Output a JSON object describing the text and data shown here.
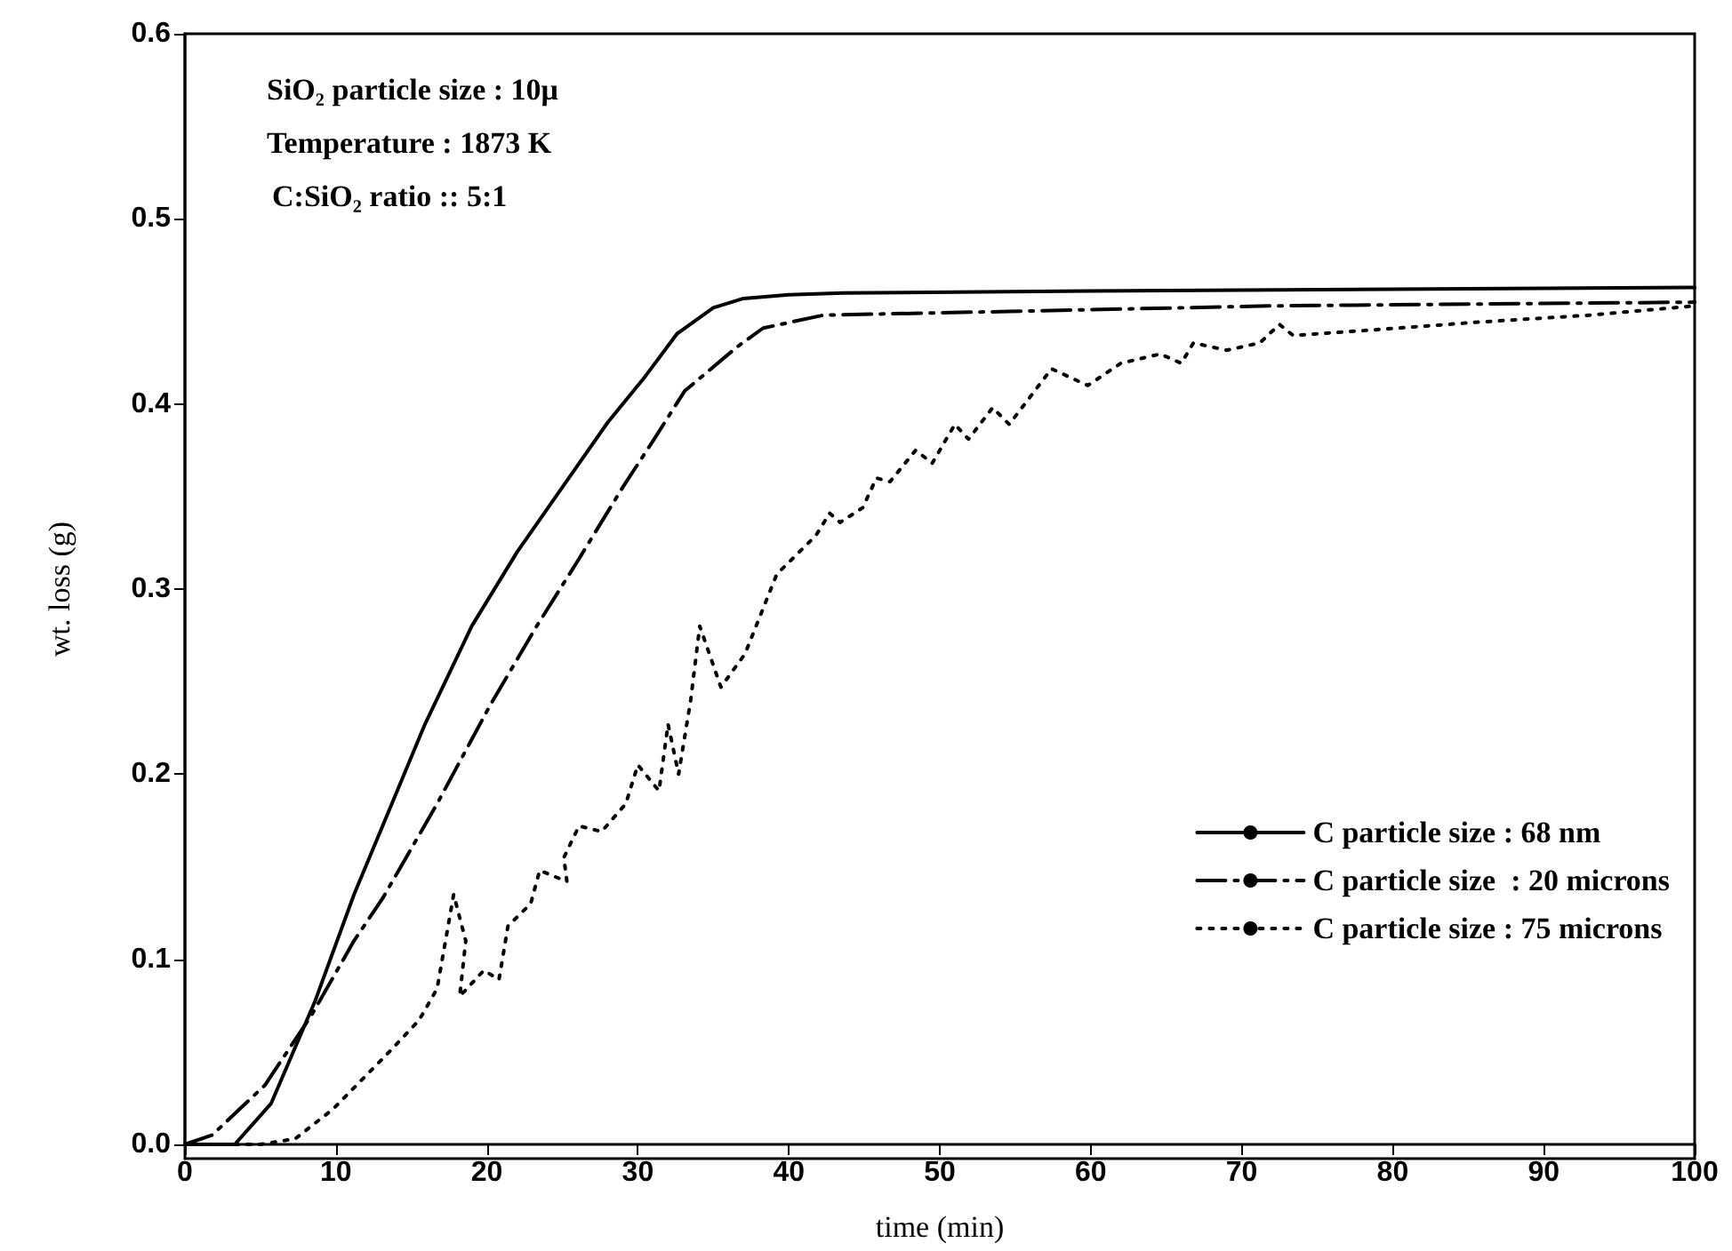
{
  "chart_data": {
    "type": "line",
    "xlabel": "time (min)",
    "ylabel": "wt. loss (g)",
    "xlim": [
      0,
      100
    ],
    "xticks": [
      0,
      10,
      20,
      30,
      40,
      50,
      60,
      70,
      80,
      90,
      100
    ],
    "ylim": [
      0,
      0.6
    ],
    "yticks": [
      {
        "value": 0,
        "label": "0.0"
      },
      0.1,
      0.2,
      0.3,
      0.4,
      0.5,
      0.6
    ],
    "grid": false,
    "legend": "bottom right",
    "marker": "none",
    "annotations": [
      "SiO₂ particle size : 10μ",
      "Temperature : 1873 K",
      "C:SiO₂ ratio :: 5:1"
    ],
    "series": [
      {
        "name": "C particle size : 68 nm",
        "color": "#000000",
        "line_style": "solid",
        "x": [
          0,
          3.3,
          5.7,
          8.6,
          11.2,
          13.5,
          15.9,
          19,
          22,
          25,
          28,
          30.5,
          32.6,
          35,
          37,
          40,
          43.6,
          60,
          80,
          100
        ],
        "values": [
          0,
          0,
          0.022,
          0.077,
          0.135,
          0.18,
          0.227,
          0.28,
          0.32,
          0.355,
          0.39,
          0.415,
          0.438,
          0.452,
          0.457,
          0.459,
          0.46,
          0.461,
          0.462,
          0.463
        ]
      },
      {
        "name": "C particle size  : 20 microns",
        "color": "#000000",
        "line_style": "dashed",
        "x": [
          0,
          1.8,
          5.3,
          8.4,
          11.2,
          13.1,
          16.7,
          20.2,
          23.3,
          26,
          29,
          31,
          33.1,
          36.6,
          38.3,
          42.3,
          54.6,
          72,
          100
        ],
        "values": [
          0,
          0.005,
          0.032,
          0.07,
          0.11,
          0.133,
          0.184,
          0.237,
          0.28,
          0.315,
          0.355,
          0.38,
          0.407,
          0.431,
          0.441,
          0.448,
          0.45,
          0.453,
          0.455
        ]
      },
      {
        "name": "C particle size : 75 microns",
        "color": "#000000",
        "line_style": "dotted",
        "x": [
          0,
          5,
          7.3,
          9.8,
          13.3,
          15.5,
          16.7,
          17.8,
          18.6,
          18.2,
          19.8,
          20.8,
          21.4,
          22.9,
          23.5,
          25.3,
          25.1,
          26.1,
          27.6,
          29.2,
          30,
          31.4,
          32,
          32.7,
          33.5,
          34.1,
          35.5,
          37.1,
          39.2,
          41.8,
          42.7,
          43.4,
          44.9,
          45.8,
          46.7,
          48.4,
          49.5,
          51,
          51.9,
          53.5,
          54.6,
          57.4,
          59.8,
          62,
          64.6,
          66,
          66.8,
          69,
          71.2,
          72.5,
          73.4,
          78.7,
          85.3,
          93.1,
          100
        ],
        "values": [
          0,
          0,
          0.003,
          0.019,
          0.048,
          0.067,
          0.084,
          0.135,
          0.11,
          0.08,
          0.094,
          0.089,
          0.118,
          0.13,
          0.148,
          0.142,
          0.155,
          0.172,
          0.169,
          0.184,
          0.205,
          0.191,
          0.227,
          0.2,
          0.24,
          0.28,
          0.247,
          0.265,
          0.308,
          0.329,
          0.341,
          0.336,
          0.344,
          0.36,
          0.358,
          0.375,
          0.368,
          0.389,
          0.381,
          0.398,
          0.389,
          0.419,
          0.41,
          0.422,
          0.427,
          0.422,
          0.433,
          0.429,
          0.433,
          0.443,
          0.437,
          0.44,
          0.444,
          0.448,
          0.453
        ]
      }
    ]
  }
}
